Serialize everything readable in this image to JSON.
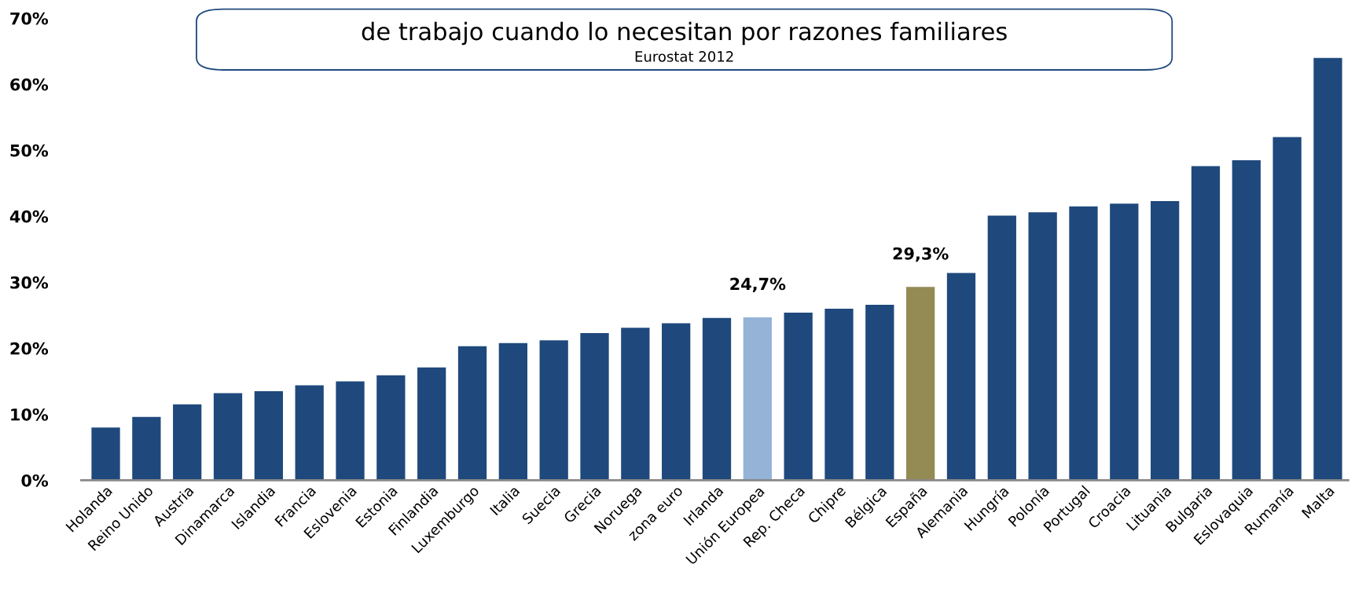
{
  "chart_data": {
    "type": "bar",
    "title": "de trabajo cuando lo necesitan por razones familiares",
    "subtitle": "Eurostat 2012",
    "categories": [
      "Holanda",
      "Reino Unido",
      "Austria",
      "Dinamarca",
      "Islandia",
      "Francia",
      "Eslovenia",
      "Estonia",
      "Finlandia",
      "Luxemburgo",
      "Italia",
      "Suecia",
      "Grecia",
      "Noruega",
      "zona euro",
      "Irlanda",
      "Unión Europea",
      "Rep. Checa",
      "Chipre",
      "Bélgica",
      "España",
      "Alemania",
      "Hungría",
      "Polonía",
      "Portugal",
      "Croacia",
      "Lituania",
      "Bulgaria",
      "Eslovaquia",
      "Rumanía",
      "Malta"
    ],
    "values": [
      8.0,
      9.6,
      11.5,
      13.2,
      13.5,
      14.4,
      15.0,
      15.9,
      17.1,
      20.3,
      20.8,
      21.2,
      22.3,
      23.1,
      23.8,
      24.6,
      24.7,
      25.4,
      26.0,
      26.6,
      29.3,
      31.4,
      40.1,
      40.6,
      41.5,
      41.9,
      42.3,
      47.6,
      48.5,
      52.0,
      64.0
    ],
    "colors": [
      "#1f497d",
      "#1f497d",
      "#1f497d",
      "#1f497d",
      "#1f497d",
      "#1f497d",
      "#1f497d",
      "#1f497d",
      "#1f497d",
      "#1f497d",
      "#1f497d",
      "#1f497d",
      "#1f497d",
      "#1f497d",
      "#1f497d",
      "#1f497d",
      "#95b3d7",
      "#1f497d",
      "#1f497d",
      "#1f497d",
      "#948a54",
      "#1f497d",
      "#1f497d",
      "#1f497d",
      "#1f497d",
      "#1f497d",
      "#1f497d",
      "#1f497d",
      "#1f497d",
      "#1f497d",
      "#1f497d"
    ],
    "value_labels": [
      null,
      null,
      null,
      null,
      null,
      null,
      null,
      null,
      null,
      null,
      null,
      null,
      null,
      null,
      null,
      null,
      "24,7%",
      null,
      null,
      null,
      "29,3%",
      null,
      null,
      null,
      null,
      null,
      null,
      null,
      null,
      null,
      null
    ],
    "ylim": [
      0,
      70
    ],
    "yticks": [
      {
        "value": 0,
        "label": "0%"
      },
      {
        "value": 10,
        "label": "10%"
      },
      {
        "value": 20,
        "label": "20%"
      },
      {
        "value": 30,
        "label": "30%"
      },
      {
        "value": 40,
        "label": "40%"
      },
      {
        "value": 50,
        "label": "50%"
      },
      {
        "value": 60,
        "label": "60%"
      },
      {
        "value": 70,
        "label": "70%"
      }
    ],
    "grid": false,
    "legend": false
  }
}
